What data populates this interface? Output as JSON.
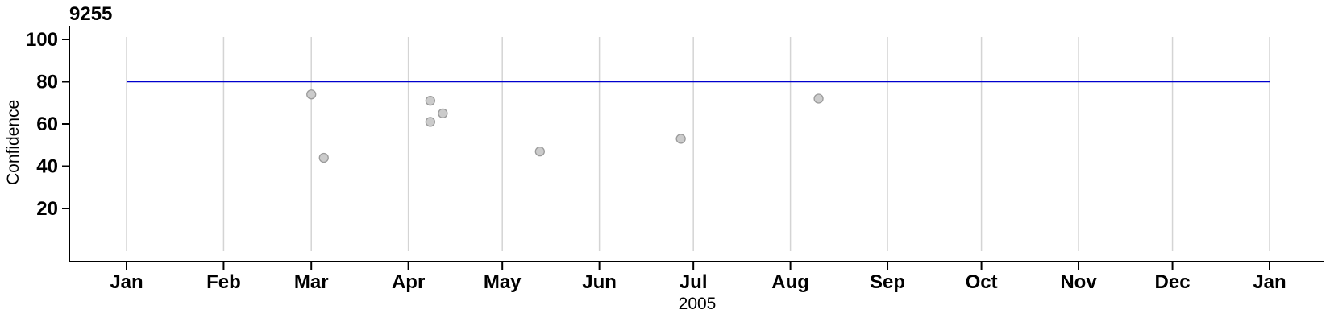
{
  "chart_data": {
    "type": "scatter",
    "title": "9255",
    "xlabel": "2005",
    "ylabel": "Confidence",
    "legend": "none",
    "grid": "vertical-month-gridlines",
    "x_axis": {
      "unit": "date within year 2005 (plus Jan 2006)",
      "tick_labels": [
        "Jan",
        "Feb",
        "Mar",
        "Apr",
        "May",
        "Jun",
        "Jul",
        "Aug",
        "Sep",
        "Oct",
        "Nov",
        "Dec",
        "Jan"
      ],
      "tick_days": [
        0,
        31,
        59,
        90,
        120,
        151,
        181,
        212,
        243,
        273,
        304,
        334,
        365
      ],
      "range_days": [
        0,
        365
      ]
    },
    "y_axis": {
      "ticks": [
        20,
        40,
        60,
        80,
        100
      ],
      "range": [
        0,
        100
      ]
    },
    "reference_line": {
      "value": 80,
      "span_days": [
        0,
        365
      ]
    },
    "points": [
      {
        "date": "2005-03-01",
        "day": 59,
        "confidence": 74
      },
      {
        "date": "2005-03-05",
        "day": 63,
        "confidence": 44
      },
      {
        "date": "2005-04-08",
        "day": 97,
        "confidence": 71
      },
      {
        "date": "2005-04-08",
        "day": 97,
        "confidence": 61
      },
      {
        "date": "2005-04-12",
        "day": 101,
        "confidence": 65
      },
      {
        "date": "2005-05-13",
        "day": 132,
        "confidence": 47
      },
      {
        "date": "2005-06-27",
        "day": 177,
        "confidence": 53
      },
      {
        "date": "2005-08-10",
        "day": 221,
        "confidence": 72
      }
    ],
    "colors": {
      "reference_line": "#0000cd",
      "grid": "#d4d4d4",
      "point_fill": "#cbcbcb",
      "point_stroke": "#9b9b9b",
      "axis": "#000000"
    }
  }
}
